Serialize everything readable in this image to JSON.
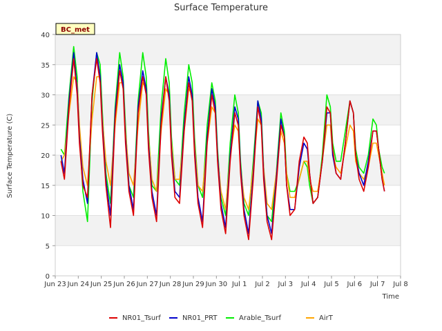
{
  "chart_data": {
    "type": "line",
    "title": "Surface Temperature",
    "xlabel": "Time",
    "ylabel": "Surface Temperature (C)",
    "badge": "BC_met",
    "x_start": "Jun 23",
    "ylim": [
      0,
      40
    ],
    "yticks": [
      0,
      5,
      10,
      15,
      20,
      25,
      30,
      35,
      40
    ],
    "xlim": [
      0,
      15
    ],
    "xtick_labels": [
      "Jun 23",
      "Jun 24",
      "Jun 25",
      "Jun 26",
      "Jun 27",
      "Jun 28",
      "Jun 29",
      "Jun 30",
      "Jul 1",
      "Jul 2",
      "Jul 3",
      "Jul 4",
      "Jul 5",
      "Jul 6",
      "Jul 7",
      "Jul 8"
    ],
    "legend_position": "bottom",
    "grid": "horizontal banded",
    "colors": {
      "NR01_Tsurf": "#dd0000",
      "NR01_PRT": "#0000cc",
      "Arable_Tsurf": "#00ee00",
      "AirT": "#ffa500"
    },
    "series": [
      {
        "name": "NR01_Tsurf",
        "x": [
          0.25,
          0.4,
          0.6,
          0.8,
          0.95,
          1.05,
          1.2,
          1.4,
          1.6,
          1.8,
          1.95,
          2.05,
          2.2,
          2.4,
          2.6,
          2.8,
          2.95,
          3.05,
          3.2,
          3.4,
          3.6,
          3.8,
          3.95,
          4.05,
          4.2,
          4.4,
          4.6,
          4.8,
          4.95,
          5.05,
          5.2,
          5.4,
          5.6,
          5.8,
          5.95,
          6.05,
          6.2,
          6.4,
          6.6,
          6.8,
          6.95,
          7.05,
          7.2,
          7.4,
          7.6,
          7.8,
          7.95,
          8.05,
          8.2,
          8.4,
          8.6,
          8.8,
          8.95,
          9.05,
          9.2,
          9.4,
          9.6,
          9.8,
          9.95,
          10.05,
          10.2,
          10.4,
          10.6,
          10.8,
          10.95,
          11.05,
          11.2,
          11.4,
          11.6,
          11.8,
          11.95,
          12.05,
          12.2,
          12.4,
          12.6,
          12.8,
          12.95,
          13.05,
          13.2,
          13.4,
          13.6,
          13.8,
          13.95,
          14.05,
          14.2,
          14.3
        ],
        "y": [
          19,
          16,
          28,
          36,
          30,
          22,
          15,
          13,
          30,
          36,
          32,
          24,
          15,
          8,
          26,
          34,
          31,
          22,
          14,
          10,
          27,
          33,
          30,
          21,
          13,
          9,
          25,
          33,
          29,
          20,
          13,
          12,
          24,
          32,
          29,
          20,
          12,
          8,
          22,
          30,
          27,
          19,
          11,
          7,
          19,
          27,
          25,
          17,
          10,
          6,
          16,
          28,
          25,
          16,
          9,
          6,
          15,
          25,
          23,
          15,
          10,
          11,
          19,
          23,
          22,
          17,
          12,
          13,
          19,
          28,
          27,
          21,
          17,
          16,
          22,
          29,
          27,
          20,
          16,
          14,
          18,
          24,
          24,
          21,
          16,
          14
        ]
      },
      {
        "name": "NR01_PRT",
        "x": [
          0.25,
          0.4,
          0.6,
          0.8,
          0.95,
          1.05,
          1.2,
          1.4,
          1.6,
          1.8,
          1.95,
          2.05,
          2.2,
          2.4,
          2.6,
          2.8,
          2.95,
          3.05,
          3.2,
          3.4,
          3.6,
          3.8,
          3.95,
          4.05,
          4.2,
          4.4,
          4.6,
          4.8,
          4.95,
          5.05,
          5.2,
          5.4,
          5.6,
          5.8,
          5.95,
          6.05,
          6.2,
          6.4,
          6.6,
          6.8,
          6.95,
          7.05,
          7.2,
          7.4,
          7.6,
          7.8,
          7.95,
          8.05,
          8.2,
          8.4,
          8.6,
          8.8,
          8.95,
          9.05,
          9.2,
          9.4,
          9.6,
          9.8,
          9.95,
          10.05,
          10.2,
          10.4,
          10.6,
          10.8,
          10.95,
          11.05,
          11.2,
          11.4,
          11.6,
          11.8,
          11.95,
          12.05,
          12.2,
          12.4,
          12.6,
          12.8,
          12.95,
          13.05,
          13.2,
          13.4,
          13.6,
          13.8,
          13.95,
          14.05,
          14.2,
          14.3
        ],
        "y": [
          20,
          17,
          29,
          37,
          31,
          23,
          16,
          12,
          30,
          37,
          33,
          25,
          16,
          10,
          27,
          35,
          32,
          23,
          15,
          11,
          28,
          34,
          31,
          22,
          14,
          10,
          26,
          33,
          30,
          21,
          14,
          13,
          25,
          33,
          30,
          21,
          13,
          9,
          23,
          31,
          28,
          20,
          12,
          8,
          20,
          28,
          26,
          18,
          11,
          7,
          17,
          29,
          26,
          17,
          10,
          7,
          16,
          26,
          23,
          15,
          11,
          11,
          18,
          22,
          21,
          17,
          12,
          13,
          19,
          27,
          27,
          20,
          17,
          16,
          22,
          29,
          27,
          20,
          17,
          15,
          19,
          24,
          24,
          21,
          16,
          14
        ]
      },
      {
        "name": "Arable_Tsurf",
        "x": [
          0.25,
          0.4,
          0.6,
          0.8,
          0.95,
          1.05,
          1.2,
          1.4,
          1.6,
          1.8,
          1.95,
          2.05,
          2.2,
          2.4,
          2.6,
          2.8,
          2.95,
          3.05,
          3.2,
          3.4,
          3.6,
          3.8,
          3.95,
          4.05,
          4.2,
          4.4,
          4.6,
          4.8,
          4.95,
          5.05,
          5.2,
          5.4,
          5.6,
          5.8,
          5.95,
          6.05,
          6.2,
          6.4,
          6.6,
          6.8,
          6.95,
          7.05,
          7.2,
          7.4,
          7.6,
          7.8,
          7.95,
          8.05,
          8.2,
          8.4,
          8.6,
          8.8,
          8.95,
          9.05,
          9.2,
          9.4,
          9.6,
          9.8,
          9.95,
          10.05,
          10.2,
          10.4,
          10.6,
          10.8,
          10.95,
          11.05,
          11.2,
          11.4,
          11.6,
          11.8,
          11.95,
          12.05,
          12.2,
          12.4,
          12.6,
          12.8,
          12.95,
          13.05,
          13.2,
          13.4,
          13.6,
          13.8,
          13.95,
          14.05,
          14.2,
          14.3
        ],
        "y": [
          21,
          20,
          30,
          38,
          33,
          24,
          14,
          9,
          29,
          37,
          35,
          27,
          17,
          12,
          28,
          37,
          33,
          25,
          15,
          13,
          29,
          37,
          33,
          24,
          15,
          14,
          28,
          36,
          32,
          23,
          16,
          15,
          27,
          35,
          32,
          23,
          15,
          13,
          25,
          32,
          29,
          21,
          13,
          10,
          22,
          30,
          27,
          19,
          12,
          10,
          19,
          29,
          27,
          18,
          10,
          9,
          17,
          27,
          24,
          17,
          14,
          14,
          16,
          19,
          18,
          15,
          12,
          13,
          20,
          30,
          28,
          22,
          19,
          19,
          24,
          29,
          27,
          21,
          18,
          17,
          20,
          26,
          25,
          21,
          18,
          17
        ]
      },
      {
        "name": "AirT",
        "x": [
          0.25,
          0.4,
          0.6,
          0.8,
          0.95,
          1.05,
          1.2,
          1.4,
          1.6,
          1.8,
          1.95,
          2.05,
          2.2,
          2.4,
          2.6,
          2.8,
          2.95,
          3.05,
          3.2,
          3.4,
          3.6,
          3.8,
          3.95,
          4.05,
          4.2,
          4.4,
          4.6,
          4.8,
          4.95,
          5.05,
          5.2,
          5.4,
          5.6,
          5.8,
          5.95,
          6.05,
          6.2,
          6.4,
          6.6,
          6.8,
          6.95,
          7.05,
          7.2,
          7.4,
          7.6,
          7.8,
          7.95,
          8.05,
          8.2,
          8.4,
          8.6,
          8.8,
          8.95,
          9.05,
          9.2,
          9.4,
          9.6,
          9.8,
          9.95,
          10.05,
          10.2,
          10.4,
          10.6,
          10.8,
          10.95,
          11.05,
          11.2,
          11.4,
          11.6,
          11.8,
          11.95,
          12.05,
          12.2,
          12.4,
          12.6,
          12.8,
          12.95,
          13.05,
          13.2,
          13.4,
          13.6,
          13.8,
          13.95,
          14.05,
          14.2,
          14.3
        ],
        "y": [
          19,
          20,
          27,
          33,
          32,
          25,
          18,
          15,
          26,
          33,
          33,
          26,
          19,
          15,
          25,
          32,
          32,
          24,
          17,
          15,
          25,
          32,
          31,
          23,
          16,
          14,
          24,
          31,
          30,
          22,
          16,
          16,
          24,
          31,
          30,
          22,
          15,
          14,
          22,
          28,
          27,
          20,
          14,
          11,
          20,
          25,
          24,
          18,
          13,
          11,
          18,
          26,
          25,
          18,
          12,
          11,
          17,
          24,
          22,
          17,
          13,
          13,
          16,
          19,
          19,
          16,
          14,
          14,
          19,
          25,
          25,
          20,
          18,
          17,
          21,
          25,
          24,
          19,
          17,
          16,
          18,
          22,
          22,
          20,
          17,
          15
        ]
      }
    ]
  }
}
